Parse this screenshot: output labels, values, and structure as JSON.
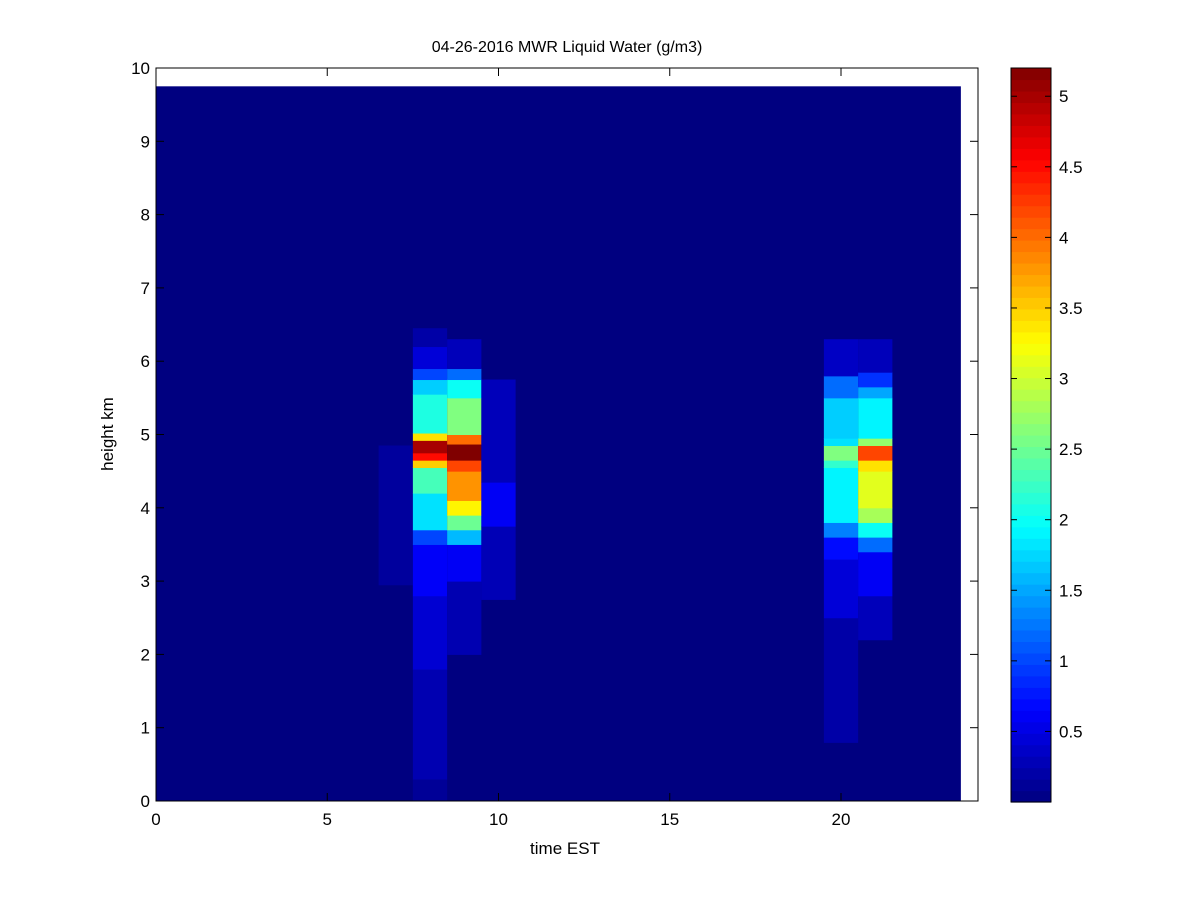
{
  "chart_data": {
    "type": "heatmap",
    "title": "04-26-2016 MWR Liquid Water (g/m3)",
    "xlabel": "time EST",
    "ylabel": "height km",
    "xlim": [
      0,
      24
    ],
    "ylim": [
      0,
      10
    ],
    "x_ticks": [
      0,
      5,
      10,
      15,
      20
    ],
    "y_ticks": [
      0,
      1,
      2,
      3,
      4,
      5,
      6,
      7,
      8,
      9,
      10
    ],
    "colormap": "jet",
    "color_range": [
      0,
      5.2
    ],
    "colorbar_ticks": [
      0.5,
      1,
      1.5,
      2,
      2.5,
      3,
      3.5,
      4,
      4.5,
      5
    ],
    "background_value": 0,
    "data_extent": {
      "x": [
        0,
        23.5
      ],
      "y": [
        0,
        9.75
      ]
    },
    "columns": [
      {
        "time": [
          6.5,
          7.5
        ],
        "cells": [
          {
            "y": [
              2.95,
              4.85
            ],
            "v": 0.15
          }
        ]
      },
      {
        "time": [
          7.5,
          8.5
        ],
        "cells": [
          {
            "y": [
              0.0,
              0.3
            ],
            "v": 0.12
          },
          {
            "y": [
              0.3,
              1.8
            ],
            "v": 0.25
          },
          {
            "y": [
              1.8,
              2.8
            ],
            "v": 0.42
          },
          {
            "y": [
              2.8,
              3.5
            ],
            "v": 0.62
          },
          {
            "y": [
              3.5,
              3.7
            ],
            "v": 1.0
          },
          {
            "y": [
              3.7,
              4.2
            ],
            "v": 1.8
          },
          {
            "y": [
              4.2,
              4.55
            ],
            "v": 2.3
          },
          {
            "y": [
              4.55,
              4.65
            ],
            "v": 3.5
          },
          {
            "y": [
              4.65,
              4.75
            ],
            "v": 4.5
          },
          {
            "y": [
              4.75,
              4.92
            ],
            "v": 5.0
          },
          {
            "y": [
              4.92,
              5.02
            ],
            "v": 3.4
          },
          {
            "y": [
              5.02,
              5.55
            ],
            "v": 2.1
          },
          {
            "y": [
              5.55,
              5.75
            ],
            "v": 1.7
          },
          {
            "y": [
              5.75,
              5.9
            ],
            "v": 1.0
          },
          {
            "y": [
              5.9,
              6.2
            ],
            "v": 0.45
          },
          {
            "y": [
              6.2,
              6.45
            ],
            "v": 0.2
          }
        ]
      },
      {
        "time": [
          8.5,
          9.5
        ],
        "cells": [
          {
            "y": [
              2.0,
              3.0
            ],
            "v": 0.25
          },
          {
            "y": [
              3.0,
              3.5
            ],
            "v": 0.6
          },
          {
            "y": [
              3.5,
              3.7
            ],
            "v": 1.6
          },
          {
            "y": [
              3.7,
              3.9
            ],
            "v": 2.5
          },
          {
            "y": [
              3.9,
              4.1
            ],
            "v": 3.3
          },
          {
            "y": [
              4.1,
              4.5
            ],
            "v": 3.8
          },
          {
            "y": [
              4.5,
              4.65
            ],
            "v": 4.2
          },
          {
            "y": [
              4.65,
              4.87
            ],
            "v": 5.2
          },
          {
            "y": [
              4.87,
              5.0
            ],
            "v": 4.0
          },
          {
            "y": [
              5.0,
              5.5
            ],
            "v": 2.6
          },
          {
            "y": [
              5.5,
              5.75
            ],
            "v": 2.0
          },
          {
            "y": [
              5.75,
              5.9
            ],
            "v": 1.2
          },
          {
            "y": [
              5.9,
              6.3
            ],
            "v": 0.3
          }
        ]
      },
      {
        "time": [
          9.5,
          10.5
        ],
        "cells": [
          {
            "y": [
              2.75,
              3.75
            ],
            "v": 0.28
          },
          {
            "y": [
              3.75,
              4.35
            ],
            "v": 0.6
          },
          {
            "y": [
              4.35,
              5.75
            ],
            "v": 0.3
          }
        ]
      },
      {
        "time": [
          19.5,
          20.5
        ],
        "cells": [
          {
            "y": [
              0.8,
              2.5
            ],
            "v": 0.2
          },
          {
            "y": [
              2.5,
              3.3
            ],
            "v": 0.45
          },
          {
            "y": [
              3.3,
              3.6
            ],
            "v": 0.7
          },
          {
            "y": [
              3.6,
              3.8
            ],
            "v": 1.3
          },
          {
            "y": [
              3.8,
              4.55
            ],
            "v": 1.9
          },
          {
            "y": [
              4.55,
              4.65
            ],
            "v": 2.2
          },
          {
            "y": [
              4.65,
              4.85
            ],
            "v": 2.6
          },
          {
            "y": [
              4.85,
              4.95
            ],
            "v": 1.8
          },
          {
            "y": [
              4.95,
              5.5
            ],
            "v": 1.7
          },
          {
            "y": [
              5.5,
              5.8
            ],
            "v": 1.2
          },
          {
            "y": [
              5.8,
              6.3
            ],
            "v": 0.35
          }
        ]
      },
      {
        "time": [
          20.5,
          21.5
        ],
        "cells": [
          {
            "y": [
              2.2,
              2.8
            ],
            "v": 0.3
          },
          {
            "y": [
              2.8,
              3.4
            ],
            "v": 0.6
          },
          {
            "y": [
              3.4,
              3.6
            ],
            "v": 1.2
          },
          {
            "y": [
              3.6,
              3.8
            ],
            "v": 2.0
          },
          {
            "y": [
              3.8,
              4.0
            ],
            "v": 2.8
          },
          {
            "y": [
              4.0,
              4.5
            ],
            "v": 3.1
          },
          {
            "y": [
              4.5,
              4.65
            ],
            "v": 3.4
          },
          {
            "y": [
              4.65,
              4.85
            ],
            "v": 4.2
          },
          {
            "y": [
              4.85,
              4.95
            ],
            "v": 2.7
          },
          {
            "y": [
              4.95,
              5.5
            ],
            "v": 1.9
          },
          {
            "y": [
              5.5,
              5.65
            ],
            "v": 1.5
          },
          {
            "y": [
              5.65,
              5.85
            ],
            "v": 0.9
          },
          {
            "y": [
              5.85,
              6.3
            ],
            "v": 0.3
          }
        ]
      }
    ]
  }
}
